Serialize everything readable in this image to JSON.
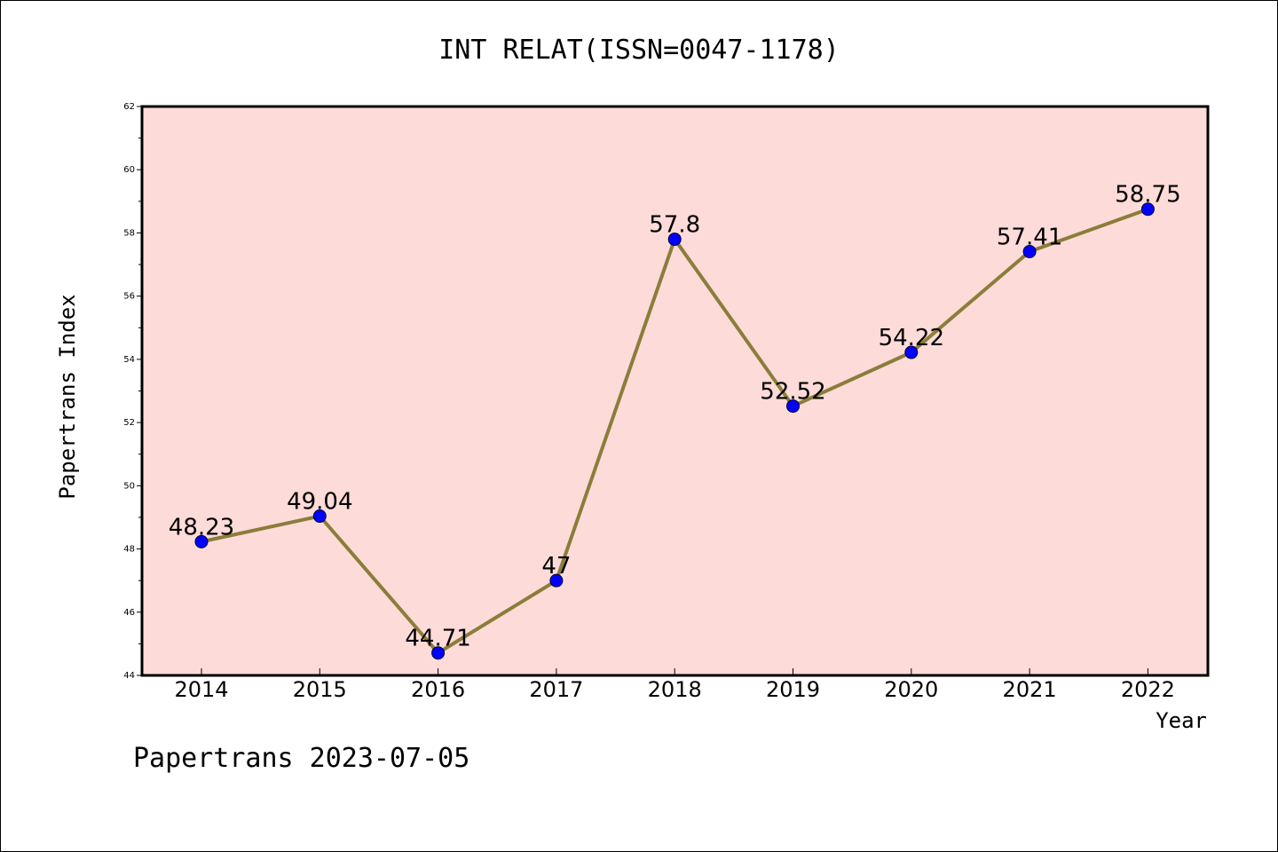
{
  "chart_data": {
    "type": "line",
    "title": "INT RELAT(ISSN=0047-1178)",
    "xlabel": "Year",
    "ylabel": "Papertrans Index",
    "categories": [
      "2014",
      "2015",
      "2016",
      "2017",
      "2018",
      "2019",
      "2020",
      "2021",
      "2022"
    ],
    "series": [
      {
        "values": [
          48.23,
          49.04,
          44.71,
          47,
          57.8,
          52.52,
          54.22,
          57.41,
          58.75
        ],
        "labels": [
          "48.23",
          "49.04",
          "44.71",
          "47",
          "57.8",
          "52.52",
          "54.22",
          "57.41",
          "58.75"
        ],
        "line_color": "#8b7d3a",
        "marker_color": "#0000ff"
      }
    ],
    "ylim": [
      44,
      62
    ],
    "yticks": [
      "44",
      "46",
      "48",
      "50",
      "52",
      "54",
      "56",
      "58",
      "60",
      "62"
    ],
    "plot_background": "#fddbd9",
    "grid": false,
    "footer": "Papertrans 2023-07-05"
  }
}
